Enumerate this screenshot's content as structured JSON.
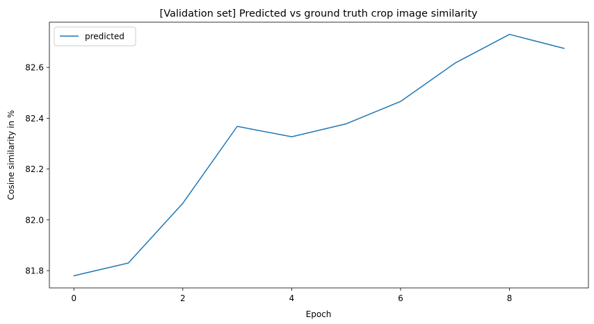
{
  "chart_data": {
    "type": "line",
    "title": "[Validation set] Predicted vs ground truth crop image similarity",
    "xlabel": "Epoch",
    "ylabel": "Cosine similarity in %",
    "x": [
      0,
      1,
      2,
      3,
      4,
      5,
      6,
      7,
      8,
      9
    ],
    "series": [
      {
        "name": "predicted",
        "color": "#1f77b4",
        "values": [
          81.78,
          81.83,
          82.065,
          82.368,
          82.327,
          82.378,
          82.466,
          82.617,
          82.73,
          82.675
        ]
      }
    ],
    "xticks": [
      0,
      2,
      4,
      6,
      8
    ],
    "xtick_labels": [
      "0",
      "2",
      "4",
      "6",
      "8"
    ],
    "yticks": [
      81.8,
      82.0,
      82.2,
      82.4,
      82.6
    ],
    "ytick_labels": [
      "81.8",
      "82.0",
      "82.2",
      "82.4",
      "82.6"
    ],
    "xlim": [
      -0.45,
      9.45
    ],
    "ylim": [
      81.732,
      82.778
    ],
    "grid": false,
    "legend": "upper-left"
  }
}
